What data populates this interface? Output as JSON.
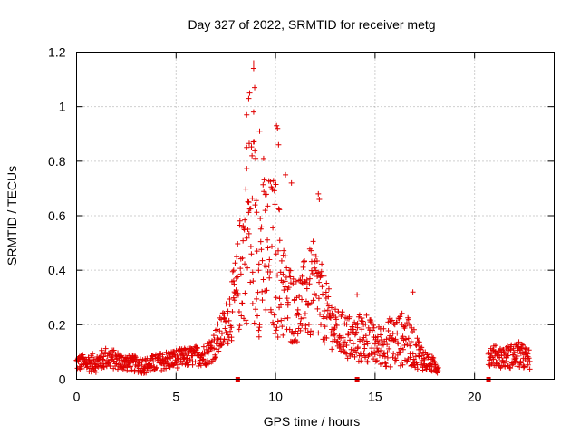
{
  "chart_data": {
    "type": "scatter",
    "title": "Day 327 of 2022, SRMTID for receiver metg",
    "xlabel": "GPS time / hours",
    "ylabel": "SRMTID / TECUs",
    "xlim": [
      0,
      24
    ],
    "ylim": [
      0,
      1.2
    ],
    "xticks": [
      0,
      5,
      10,
      15,
      20
    ],
    "xtick_labels": [
      "0",
      "5",
      "10",
      "15",
      "20"
    ],
    "yticks": [
      0,
      0.2,
      0.4,
      0.6,
      0.8,
      1,
      1.2
    ],
    "ytick_labels": [
      "0",
      "0.2",
      "0.4",
      "0.6",
      "0.8",
      "1",
      "1.2"
    ],
    "grid": true,
    "marker": "+",
    "color": "#e00000",
    "gap_markers_x": [
      8.1,
      14.1,
      20.7
    ],
    "envelope": [
      {
        "x": 0.0,
        "y": 0.06,
        "spread": 0.03
      },
      {
        "x": 1.0,
        "y": 0.06,
        "spread": 0.035
      },
      {
        "x": 1.5,
        "y": 0.08,
        "spread": 0.04
      },
      {
        "x": 2.5,
        "y": 0.06,
        "spread": 0.03
      },
      {
        "x": 3.5,
        "y": 0.05,
        "spread": 0.03
      },
      {
        "x": 4.5,
        "y": 0.07,
        "spread": 0.035
      },
      {
        "x": 5.5,
        "y": 0.08,
        "spread": 0.035
      },
      {
        "x": 6.5,
        "y": 0.09,
        "spread": 0.04
      },
      {
        "x": 7.0,
        "y": 0.13,
        "spread": 0.06
      },
      {
        "x": 7.5,
        "y": 0.2,
        "spread": 0.08
      },
      {
        "x": 8.0,
        "y": 0.3,
        "spread": 0.15
      },
      {
        "x": 8.5,
        "y": 0.5,
        "spread": 0.3
      },
      {
        "x": 8.8,
        "y": 0.6,
        "spread": 0.4
      },
      {
        "x": 9.2,
        "y": 0.45,
        "spread": 0.3
      },
      {
        "x": 9.6,
        "y": 0.45,
        "spread": 0.3
      },
      {
        "x": 10.0,
        "y": 0.45,
        "spread": 0.3
      },
      {
        "x": 10.5,
        "y": 0.3,
        "spread": 0.18
      },
      {
        "x": 11.0,
        "y": 0.25,
        "spread": 0.12
      },
      {
        "x": 11.5,
        "y": 0.3,
        "spread": 0.15
      },
      {
        "x": 12.0,
        "y": 0.32,
        "spread": 0.2
      },
      {
        "x": 12.5,
        "y": 0.25,
        "spread": 0.12
      },
      {
        "x": 13.0,
        "y": 0.18,
        "spread": 0.08
      },
      {
        "x": 14.0,
        "y": 0.14,
        "spread": 0.09
      },
      {
        "x": 14.5,
        "y": 0.16,
        "spread": 0.1
      },
      {
        "x": 15.0,
        "y": 0.12,
        "spread": 0.07
      },
      {
        "x": 16.0,
        "y": 0.14,
        "spread": 0.1
      },
      {
        "x": 16.5,
        "y": 0.15,
        "spread": 0.1
      },
      {
        "x": 17.0,
        "y": 0.11,
        "spread": 0.07
      },
      {
        "x": 17.5,
        "y": 0.07,
        "spread": 0.04
      },
      {
        "x": 18.2,
        "y": 0.04,
        "spread": 0.02
      }
    ],
    "segment_2_envelope": [
      {
        "x": 20.7,
        "y": 0.09,
        "spread": 0.04
      },
      {
        "x": 21.5,
        "y": 0.08,
        "spread": 0.04
      },
      {
        "x": 22.2,
        "y": 0.09,
        "spread": 0.05
      },
      {
        "x": 22.8,
        "y": 0.07,
        "spread": 0.04
      }
    ],
    "peaks": [
      {
        "x": 8.9,
        "y": 1.16
      },
      {
        "x": 8.9,
        "y": 1.14
      },
      {
        "x": 8.95,
        "y": 1.07
      },
      {
        "x": 8.7,
        "y": 1.05
      },
      {
        "x": 8.65,
        "y": 1.03
      },
      {
        "x": 8.55,
        "y": 0.97
      },
      {
        "x": 8.9,
        "y": 0.98
      },
      {
        "x": 9.2,
        "y": 0.91
      },
      {
        "x": 10.05,
        "y": 0.93
      },
      {
        "x": 10.1,
        "y": 0.92
      },
      {
        "x": 10.15,
        "y": 0.86
      },
      {
        "x": 8.55,
        "y": 0.85
      },
      {
        "x": 9.4,
        "y": 0.81
      },
      {
        "x": 10.5,
        "y": 0.75
      },
      {
        "x": 10.8,
        "y": 0.72
      },
      {
        "x": 12.15,
        "y": 0.68
      },
      {
        "x": 12.2,
        "y": 0.66
      },
      {
        "x": 14.1,
        "y": 0.31
      },
      {
        "x": 16.9,
        "y": 0.32
      }
    ]
  }
}
